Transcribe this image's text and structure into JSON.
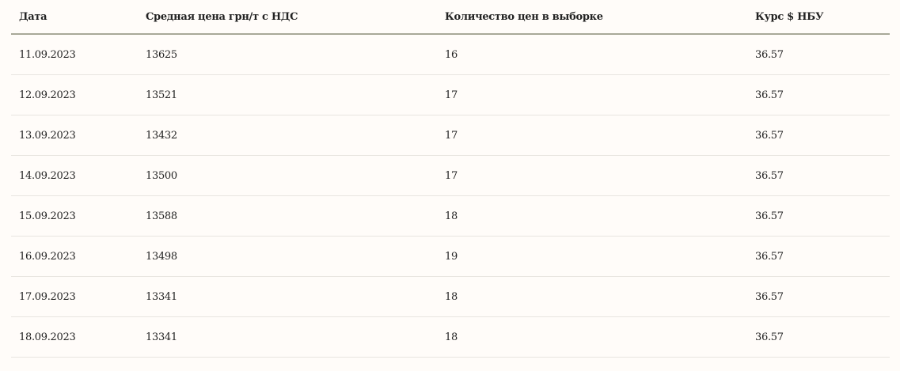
{
  "table": {
    "headers": [
      "Дата",
      "Средная цена грн/т с НДС",
      "Количество цен в выборке",
      "Курс $ НБУ"
    ],
    "rows": [
      [
        "11.09.2023",
        "13625",
        "16",
        "36.57"
      ],
      [
        "12.09.2023",
        "13521",
        "17",
        "36.57"
      ],
      [
        "13.09.2023",
        "13432",
        "17",
        "36.57"
      ],
      [
        "14.09.2023",
        "13500",
        "17",
        "36.57"
      ],
      [
        "15.09.2023",
        "13588",
        "18",
        "36.57"
      ],
      [
        "16.09.2023",
        "13498",
        "19",
        "36.57"
      ],
      [
        "17.09.2023",
        "13341",
        "18",
        "36.57"
      ],
      [
        "18.09.2023",
        "13341",
        "18",
        "36.57"
      ]
    ]
  }
}
